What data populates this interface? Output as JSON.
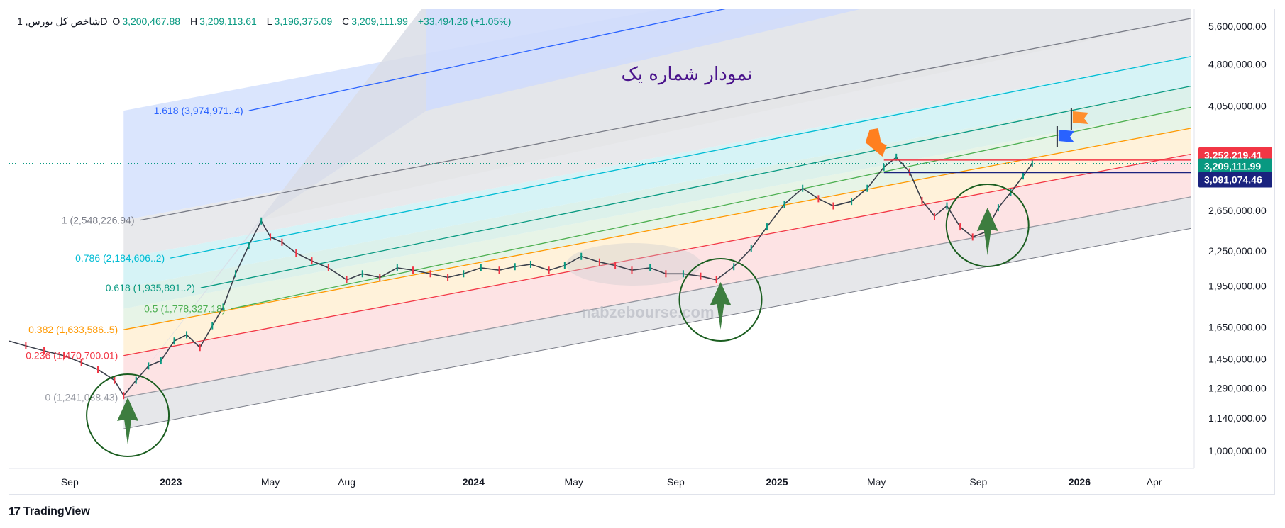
{
  "header": {
    "symbol": "شاخص کل بورس, 1D",
    "open_label": "O",
    "open": "3,200,467.88",
    "high_label": "H",
    "high": "3,209,113.61",
    "low_label": "L",
    "low": "3,196,375.09",
    "close_label": "C",
    "close": "3,209,111.99",
    "change": "+33,494.26 (+1.05%)"
  },
  "footer": {
    "brand": "TradingView"
  },
  "colors": {
    "up": "#089981",
    "down": "#f23645",
    "fib0": "#9598a1",
    "fib236": "#f23645",
    "fib382": "#ff9800",
    "fib5": "#4caf50",
    "fib618": "#089981",
    "fib786": "#00bcd4",
    "fib1": "#787b86",
    "fib1618": "#2962ff"
  },
  "chart_data": {
    "type": "line",
    "title": "نمودار شماره یک",
    "watermark": "nabzebourse.com",
    "y_axis": {
      "scale": "log",
      "range": [
        930000,
        6000000
      ],
      "ticks": [
        "5,600,000.00",
        "4,800,000.00",
        "4,050,000.00",
        "2,650,000.00",
        "2,250,000.00",
        "1,950,000.00",
        "1,650,000.00",
        "1,450,000.00",
        "1,290,000.00",
        "1,140,000.00",
        "1,000,000.00"
      ],
      "tick_values": [
        5600000,
        4800000,
        4050000,
        2650000,
        2250000,
        1950000,
        1650000,
        1450000,
        1290000,
        1140000,
        1000000
      ]
    },
    "x_axis": {
      "ticks": [
        "Sep",
        "2023",
        "May",
        "Aug",
        "2024",
        "May",
        "Sep",
        "2025",
        "May",
        "Sep",
        "2026",
        "Apr"
      ],
      "tick_dates": [
        "2022-09-01",
        "2023-01-01",
        "2023-05-01",
        "2023-08-01",
        "2024-01-01",
        "2024-05-01",
        "2024-09-01",
        "2025-01-01",
        "2025-05-01",
        "2025-09-01",
        "2026-01-01",
        "2026-04-01"
      ],
      "bold": [
        false,
        true,
        false,
        false,
        true,
        false,
        false,
        true,
        false,
        false,
        true,
        false
      ],
      "range": [
        "2022-06-20",
        "2026-05-15"
      ]
    },
    "price_labels": [
      {
        "text": "3,252,219.41",
        "value": 3252219.41,
        "color": "#f23645"
      },
      {
        "text": "3,209,111.99",
        "value": 3209111.99,
        "color": "#089981"
      },
      {
        "text": "3,091,074.46",
        "value": 3091074.46,
        "color": "#1a237e"
      }
    ],
    "fib_channel": {
      "start_date": "2022-11-05",
      "end_date": "2026-05-15",
      "anchor_date": "2023-04-20",
      "levels": [
        {
          "ratio": "0",
          "text": "0 (1,241,038.43)",
          "value": 1241038.43,
          "end_value": 2800000,
          "color": "#9598a1"
        },
        {
          "ratio": "0.236",
          "text": "0.236 (1,470,700.01)",
          "value": 1470700.01,
          "end_value": 3330000,
          "color": "#f23645"
        },
        {
          "ratio": "0.382",
          "text": "0.382 (1,633,586..5)",
          "value": 1633586.5,
          "end_value": 3700000,
          "color": "#ff9800"
        },
        {
          "ratio": "0.5",
          "text": "0.5 (1,778,327.18)",
          "value": 1778327.18,
          "end_value": 4030000,
          "color": "#4caf50"
        },
        {
          "ratio": "0.618",
          "text": "0.618 (1,935,891..2)",
          "value": 1935891.2,
          "end_value": 4390000,
          "color": "#089981"
        },
        {
          "ratio": "0.786",
          "text": "0.786 (2,184,606..2)",
          "value": 2184606.2,
          "end_value": 4950000,
          "color": "#00bcd4"
        },
        {
          "ratio": "1",
          "text": "1 (2,548,226.94)",
          "value": 2548226.94,
          "end_value": 5780000,
          "color": "#787b86"
        },
        {
          "ratio": "1.618",
          "text": "1.618 (3,974,971..4)",
          "value": 3974971.4,
          "end_value": 9000000,
          "color": "#2962ff"
        }
      ]
    },
    "series": [
      {
        "x": [
          "2022-06-20",
          "2022-07-10",
          "2022-08-01",
          "2022-08-25",
          "2022-09-15",
          "2022-10-05",
          "2022-10-25",
          "2022-11-05",
          "2022-11-20",
          "2022-12-05",
          "2022-12-20",
          "2023-01-05",
          "2023-01-20",
          "2023-02-05",
          "2023-02-20",
          "2023-03-05",
          "2023-03-20",
          "2023-04-05",
          "2023-04-20",
          "2023-05-01",
          "2023-05-15",
          "2023-06-01",
          "2023-06-20",
          "2023-07-10",
          "2023-08-01",
          "2023-08-20",
          "2023-09-10",
          "2023-10-01",
          "2023-10-20",
          "2023-11-10",
          "2023-12-01",
          "2023-12-20",
          "2024-01-10",
          "2024-02-01",
          "2024-02-20",
          "2024-03-10",
          "2024-04-01",
          "2024-04-20",
          "2024-05-10",
          "2024-06-01",
          "2024-06-20",
          "2024-07-10",
          "2024-08-01",
          "2024-08-20",
          "2024-09-10",
          "2024-10-01",
          "2024-10-20",
          "2024-11-10",
          "2024-12-01",
          "2024-12-20",
          "2025-01-10",
          "2025-02-01",
          "2025-02-20",
          "2025-03-10",
          "2025-04-01",
          "2025-04-20",
          "2025-05-10",
          "2025-05-25",
          "2025-06-10",
          "2025-06-25",
          "2025-07-10",
          "2025-07-25",
          "2025-08-10",
          "2025-08-25",
          "2025-09-10",
          "2025-09-25",
          "2025-10-10",
          "2025-10-25",
          "2025-11-05"
        ],
        "y": [
          1560000,
          1530000,
          1500000,
          1470000,
          1430000,
          1390000,
          1330000,
          1250000,
          1330000,
          1410000,
          1440000,
          1560000,
          1600000,
          1520000,
          1660000,
          1790000,
          2050000,
          2300000,
          2540000,
          2380000,
          2330000,
          2230000,
          2160000,
          2100000,
          2000000,
          2050000,
          2020000,
          2100000,
          2080000,
          2050000,
          2020000,
          2050000,
          2100000,
          2080000,
          2110000,
          2130000,
          2080000,
          2120000,
          2200000,
          2150000,
          2120000,
          2080000,
          2100000,
          2050000,
          2050000,
          2030000,
          2000000,
          2110000,
          2270000,
          2480000,
          2720000,
          2900000,
          2780000,
          2700000,
          2750000,
          2900000,
          3160000,
          3290000,
          3100000,
          2760000,
          2590000,
          2700000,
          2480000,
          2380000,
          2430000,
          2680000,
          2850000,
          3050000,
          3209111.99
        ]
      }
    ],
    "annotations": [
      "circle-arrow-up",
      "circle-arrow-up",
      "circle-arrow-up",
      "orange-flag",
      "blue-flag",
      "orange-arrow"
    ]
  }
}
